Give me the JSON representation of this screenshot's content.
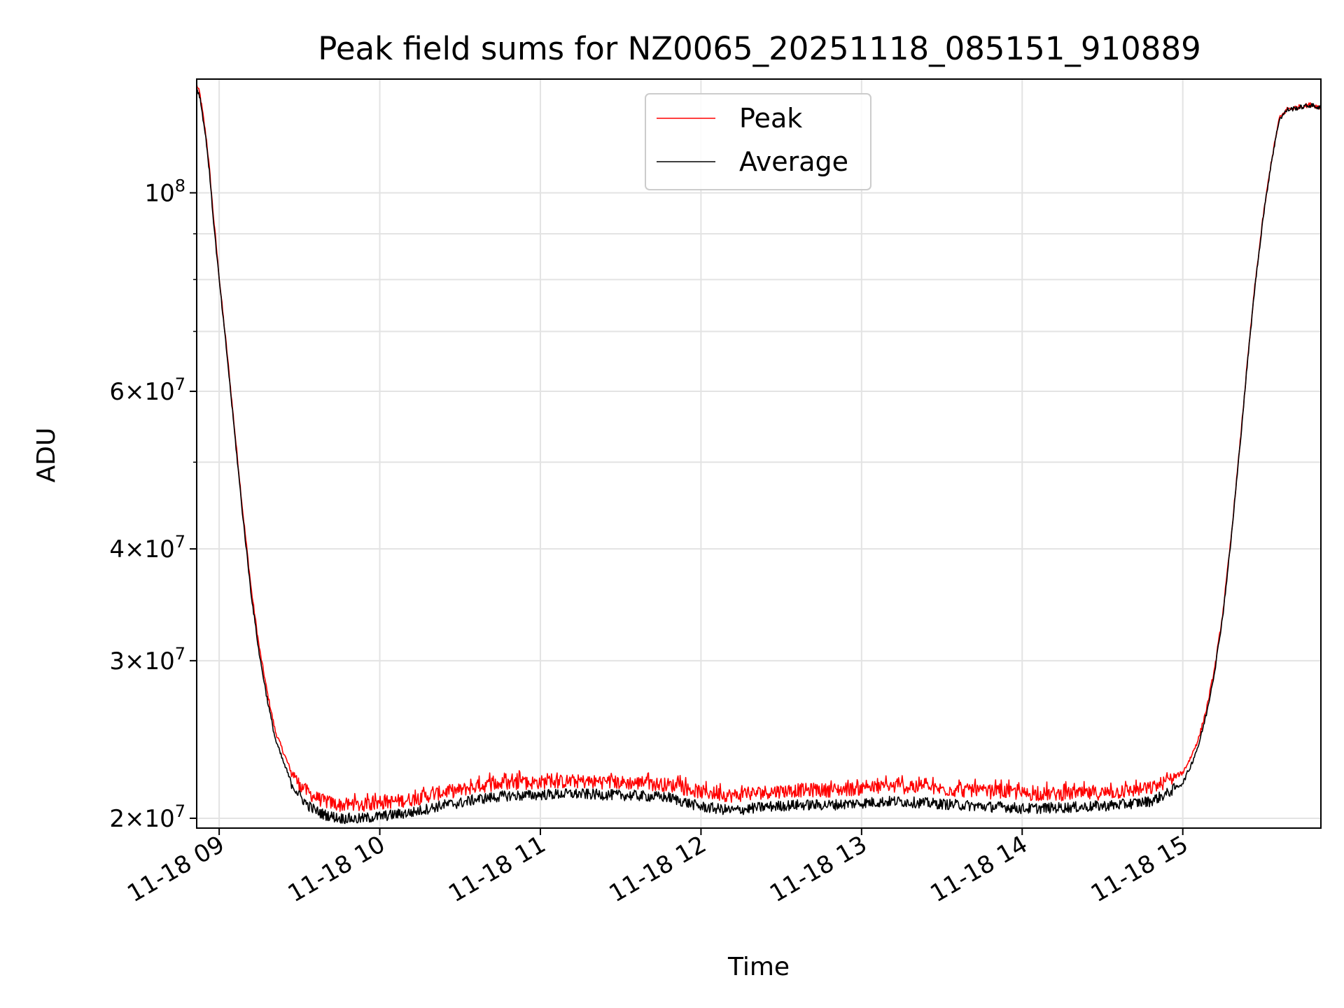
{
  "chart_data": {
    "type": "line",
    "title": "Peak field sums for NZ0065_20251118_085151_910889",
    "xlabel": "Time",
    "ylabel": "ADU",
    "yscale": "log",
    "grid": true,
    "legend_position": "top-center",
    "x_unit": "hours since 11-18 09:00",
    "xlim": [
      -0.14,
      6.86
    ],
    "ylim": [
      19500000,
      134000000
    ],
    "x_tick_values": [
      0,
      1,
      2,
      3,
      4,
      5,
      6
    ],
    "x_tick_labels": [
      "11-18 09",
      "11-18 10",
      "11-18 11",
      "11-18 12",
      "11-18 13",
      "11-18 14",
      "11-18 15"
    ],
    "y_tick_values": [
      20000000,
      30000000,
      40000000,
      60000000,
      100000000
    ],
    "y_tick_labels": [
      {
        "base": "2×10",
        "exp": "7"
      },
      {
        "base": "3×10",
        "exp": "7"
      },
      {
        "base": "4×10",
        "exp": "7"
      },
      {
        "base": "6×10",
        "exp": "7"
      },
      {
        "base": "10",
        "exp": "8"
      }
    ],
    "y_minor_tick_values": [
      50000000,
      70000000,
      80000000,
      90000000
    ],
    "series": [
      {
        "name": "Peak",
        "color": "#ff0000",
        "x": [
          -0.14,
          -0.12,
          -0.1,
          -0.08,
          -0.06,
          -0.04,
          -0.02,
          0.0,
          0.05,
          0.1,
          0.15,
          0.2,
          0.25,
          0.3,
          0.35,
          0.4,
          0.45,
          0.5,
          0.55,
          0.6,
          0.65,
          0.7,
          0.75,
          0.8,
          0.85,
          0.9,
          0.95,
          1.0,
          1.1,
          1.2,
          1.3,
          1.4,
          1.5,
          1.6,
          1.7,
          1.8,
          1.9,
          2.0,
          2.2,
          2.4,
          2.6,
          2.8,
          3.0,
          3.1,
          3.2,
          3.4,
          3.6,
          3.8,
          4.0,
          4.2,
          4.4,
          4.6,
          4.8,
          4.9,
          5.0,
          5.2,
          5.4,
          5.6,
          5.8,
          5.9,
          6.0,
          6.05,
          6.1,
          6.15,
          6.2,
          6.25,
          6.3,
          6.35,
          6.4,
          6.45,
          6.5,
          6.55,
          6.6,
          6.65,
          6.7,
          6.75,
          6.8,
          6.86
        ],
        "y": [
          132000000,
          129000000,
          122000000,
          115000000,
          106000000,
          96000000,
          88000000,
          80500000,
          66000000,
          53500000,
          43500000,
          36000000,
          31000000,
          27600000,
          25000000,
          23700000,
          22500000,
          21800000,
          21400000,
          21100000,
          20900000,
          20800000,
          20700000,
          20700000,
          20650000,
          20700000,
          20750000,
          20800000,
          20900000,
          21000000,
          21200000,
          21400000,
          21500000,
          21700000,
          21800000,
          21900000,
          21900000,
          21950000,
          22000000,
          21950000,
          21900000,
          21800000,
          21400000,
          21300000,
          21200000,
          21400000,
          21500000,
          21500000,
          21600000,
          21700000,
          21600000,
          21500000,
          21400000,
          21400000,
          21300000,
          21300000,
          21300000,
          21400000,
          21600000,
          22000000,
          22500000,
          23400000,
          24600000,
          26600000,
          29500000,
          34000000,
          41000000,
          51000000,
          64000000,
          79000000,
          94000000,
          108000000,
          121000000,
          124000000,
          124500000,
          125000000,
          125500000,
          124500000
        ]
      },
      {
        "name": "Average",
        "color": "#000000",
        "x": [
          -0.14,
          -0.12,
          -0.1,
          -0.08,
          -0.06,
          -0.04,
          -0.02,
          0.0,
          0.05,
          0.1,
          0.15,
          0.2,
          0.25,
          0.3,
          0.35,
          0.4,
          0.45,
          0.5,
          0.55,
          0.6,
          0.65,
          0.7,
          0.75,
          0.8,
          0.85,
          0.9,
          0.95,
          1.0,
          1.1,
          1.2,
          1.3,
          1.4,
          1.5,
          1.6,
          1.7,
          1.8,
          1.9,
          2.0,
          2.2,
          2.4,
          2.6,
          2.8,
          3.0,
          3.1,
          3.2,
          3.4,
          3.6,
          3.8,
          4.0,
          4.2,
          4.4,
          4.6,
          4.8,
          4.9,
          5.0,
          5.2,
          5.4,
          5.6,
          5.8,
          5.9,
          6.0,
          6.05,
          6.1,
          6.15,
          6.2,
          6.25,
          6.3,
          6.35,
          6.4,
          6.45,
          6.5,
          6.55,
          6.6,
          6.65,
          6.7,
          6.75,
          6.8,
          6.86
        ],
        "y": [
          131000000,
          128000000,
          121000000,
          114000000,
          105000000,
          95000000,
          87000000,
          80000000,
          65500000,
          53000000,
          43000000,
          35500000,
          30500000,
          27100000,
          24500000,
          23100000,
          21900000,
          21200000,
          20700000,
          20400000,
          20200000,
          20100000,
          20000000,
          20000000,
          19950000,
          20000000,
          20050000,
          20100000,
          20200000,
          20300000,
          20500000,
          20700000,
          20800000,
          21000000,
          21100000,
          21200000,
          21200000,
          21250000,
          21300000,
          21250000,
          21200000,
          21100000,
          20600000,
          20500000,
          20400000,
          20600000,
          20700000,
          20700000,
          20800000,
          20900000,
          20800000,
          20700000,
          20600000,
          20600000,
          20500000,
          20550000,
          20600000,
          20700000,
          20900000,
          21300000,
          21900000,
          22900000,
          24200000,
          26300000,
          29300000,
          33800000,
          40800000,
          50800000,
          63800000,
          78800000,
          93800000,
          107800000,
          120800000,
          123800000,
          124300000,
          124800000,
          125300000,
          124300000
        ]
      }
    ]
  }
}
